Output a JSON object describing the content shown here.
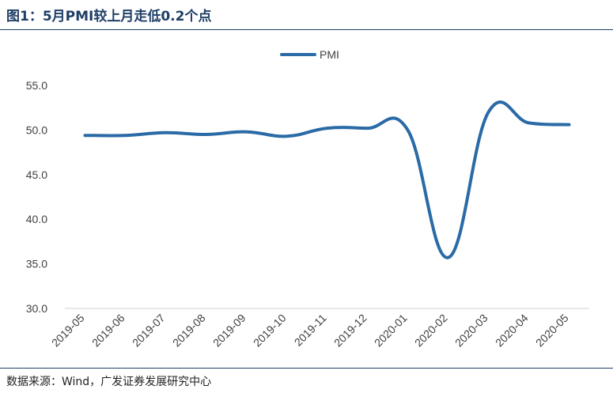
{
  "figure": {
    "title": "图1：5月PMI较上月走低0.2个点",
    "source": "数据来源：Wind，广发证券发展研究中心"
  },
  "chart_data": {
    "type": "line",
    "categories": [
      "2019-05",
      "2019-06",
      "2019-07",
      "2019-08",
      "2019-09",
      "2019-10",
      "2019-11",
      "2019-12",
      "2020-01",
      "2020-02",
      "2020-03",
      "2020-04",
      "2020-05"
    ],
    "series": [
      {
        "name": "PMI",
        "values": [
          49.4,
          49.4,
          49.7,
          49.5,
          49.8,
          49.3,
          50.2,
          50.2,
          50.0,
          35.7,
          52.0,
          50.8,
          50.6
        ],
        "color": "#2a6aa6"
      }
    ],
    "yticks": [
      "30.0",
      "35.0",
      "40.0",
      "45.0",
      "50.0",
      "55.0"
    ],
    "ylim": [
      30,
      55
    ],
    "legend_position": "top-center",
    "grid": false
  }
}
